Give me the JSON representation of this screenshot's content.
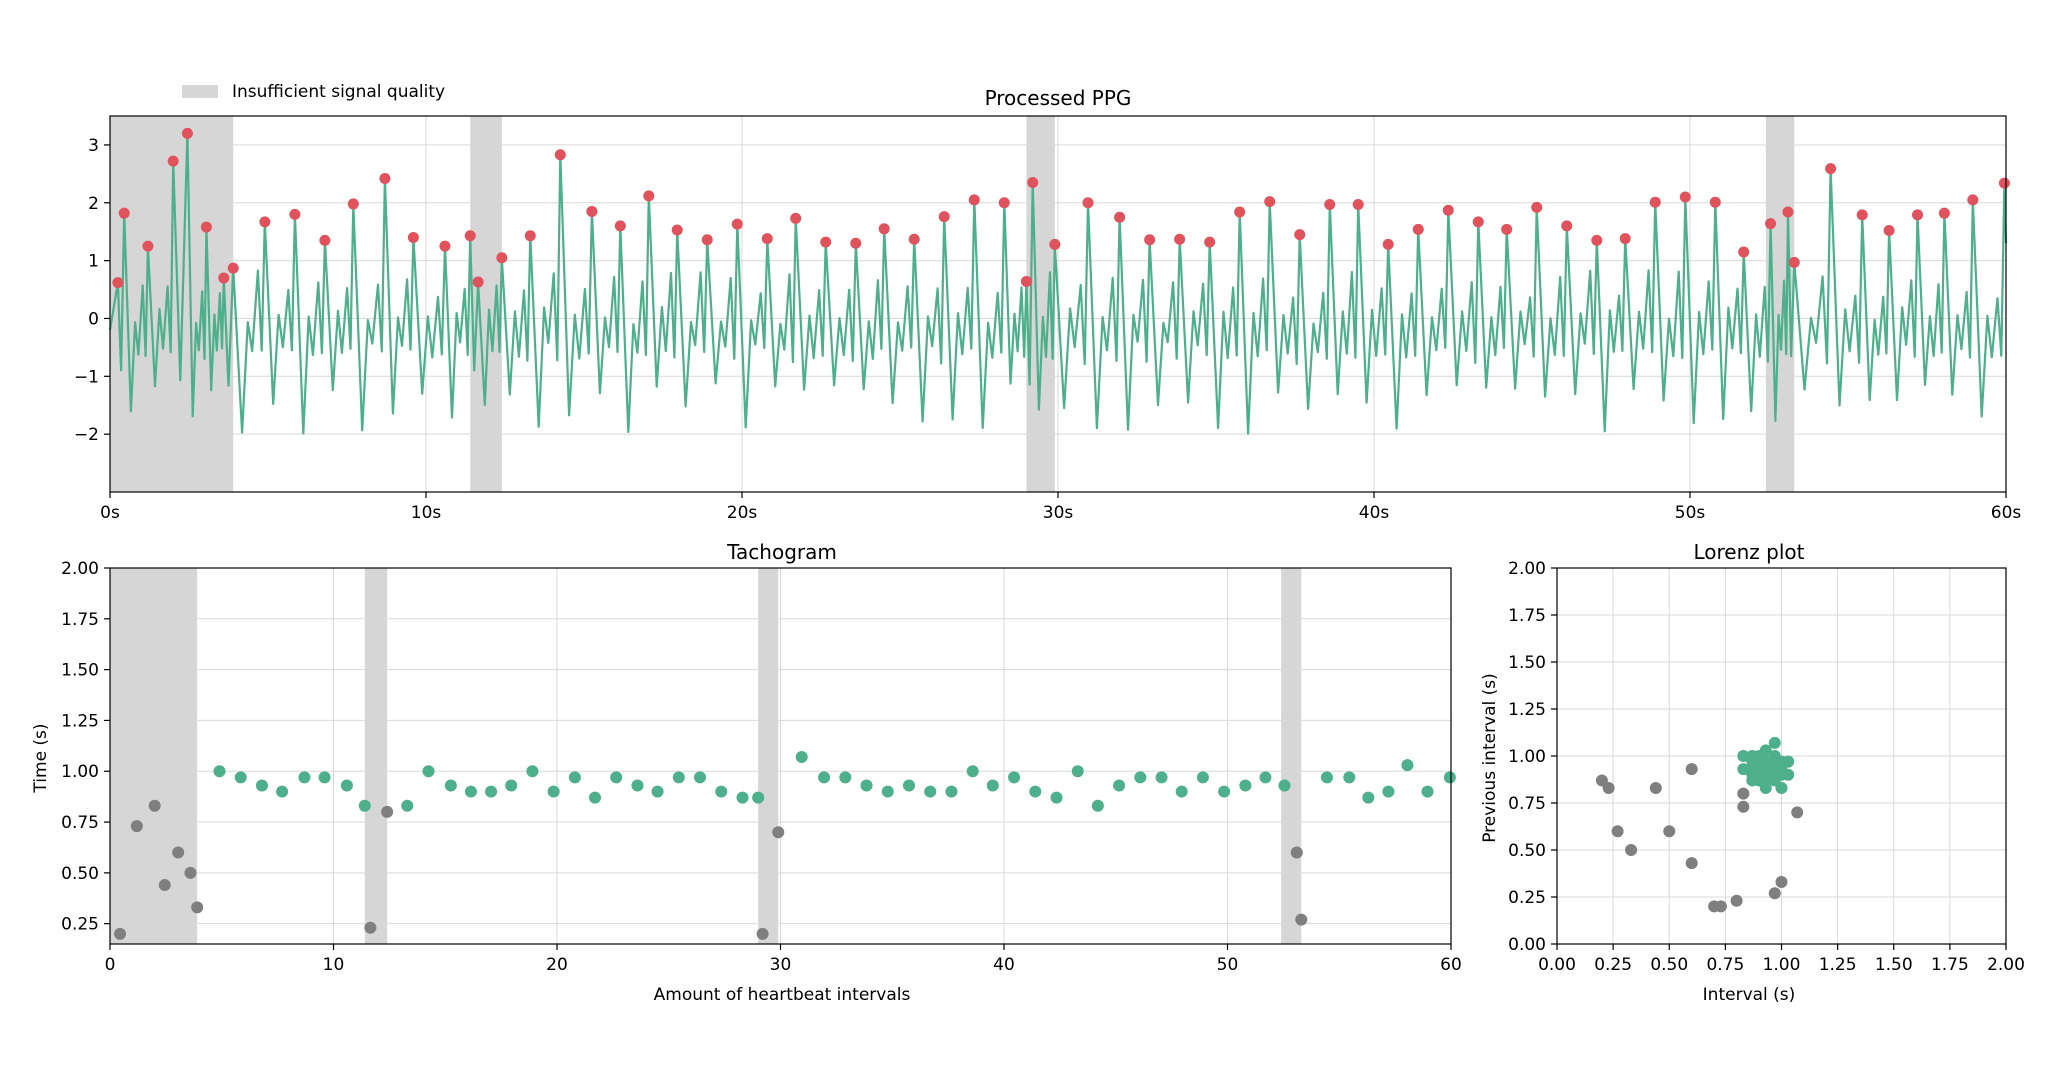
{
  "colors": {
    "signal": "#4daf8c",
    "peak": "#e0525c",
    "valid": "#4daf8c",
    "invalid": "#7f7f7f",
    "band": "#d6d6d6",
    "grid": "#d9d9d9"
  },
  "legend": {
    "label": "Insufficient signal quality"
  },
  "chart_data": [
    {
      "id": "ppg",
      "type": "line",
      "title": "Processed PPG",
      "xlabel": "",
      "ylabel": "",
      "xlim": [
        0,
        60
      ],
      "ylim": [
        -3.0,
        3.5
      ],
      "xticks": [
        0,
        10,
        20,
        30,
        40,
        50,
        60
      ],
      "xtick_labels": [
        "0s",
        "10s",
        "20s",
        "30s",
        "40s",
        "50s",
        "60s"
      ],
      "yticks": [
        -2,
        -1,
        0,
        1,
        2,
        3
      ],
      "ytick_labels": [
        "−2",
        "−1",
        "0",
        "1",
        "2",
        "3"
      ],
      "bands": [
        [
          0,
          3.9
        ],
        [
          11.4,
          12.4
        ],
        [
          29.0,
          29.9
        ],
        [
          52.4,
          53.3
        ]
      ],
      "peaks": [
        [
          0.25,
          0.62
        ],
        [
          0.45,
          1.82
        ],
        [
          1.2,
          1.25
        ],
        [
          2.0,
          2.72
        ],
        [
          2.45,
          3.2
        ],
        [
          3.05,
          1.58
        ],
        [
          3.6,
          0.7
        ],
        [
          3.9,
          0.87
        ],
        [
          4.9,
          1.67
        ],
        [
          5.85,
          1.8
        ],
        [
          6.8,
          1.35
        ],
        [
          7.7,
          1.98
        ],
        [
          8.7,
          2.42
        ],
        [
          9.6,
          1.4
        ],
        [
          10.6,
          1.25
        ],
        [
          11.4,
          1.43
        ],
        [
          11.65,
          0.63
        ],
        [
          12.4,
          1.05
        ],
        [
          13.3,
          1.43
        ],
        [
          14.25,
          2.83
        ],
        [
          15.25,
          1.85
        ],
        [
          16.15,
          1.6
        ],
        [
          17.05,
          2.12
        ],
        [
          17.95,
          1.53
        ],
        [
          18.9,
          1.36
        ],
        [
          19.85,
          1.63
        ],
        [
          20.8,
          1.38
        ],
        [
          21.7,
          1.73
        ],
        [
          22.65,
          1.32
        ],
        [
          23.6,
          1.3
        ],
        [
          24.5,
          1.55
        ],
        [
          25.45,
          1.37
        ],
        [
          26.4,
          1.76
        ],
        [
          27.35,
          2.05
        ],
        [
          28.3,
          2.0
        ],
        [
          29.0,
          0.64
        ],
        [
          29.2,
          2.35
        ],
        [
          29.9,
          1.28
        ],
        [
          30.95,
          2.0
        ],
        [
          31.95,
          1.75
        ],
        [
          32.9,
          1.36
        ],
        [
          33.85,
          1.37
        ],
        [
          34.8,
          1.32
        ],
        [
          35.75,
          1.84
        ],
        [
          36.7,
          2.02
        ],
        [
          37.65,
          1.45
        ],
        [
          38.6,
          1.97
        ],
        [
          39.5,
          1.97
        ],
        [
          40.45,
          1.28
        ],
        [
          41.4,
          1.54
        ],
        [
          42.35,
          1.87
        ],
        [
          43.3,
          1.67
        ],
        [
          44.2,
          1.54
        ],
        [
          45.15,
          1.92
        ],
        [
          46.1,
          1.6
        ],
        [
          47.05,
          1.35
        ],
        [
          47.95,
          1.38
        ],
        [
          48.9,
          2.01
        ],
        [
          49.85,
          2.1
        ],
        [
          50.8,
          2.01
        ],
        [
          51.7,
          1.15
        ],
        [
          52.55,
          1.64
        ],
        [
          53.1,
          1.84
        ],
        [
          53.3,
          0.97
        ],
        [
          54.45,
          2.59
        ],
        [
          55.45,
          1.79
        ],
        [
          56.3,
          1.52
        ],
        [
          57.2,
          1.79
        ],
        [
          58.05,
          1.82
        ],
        [
          58.95,
          2.05
        ],
        [
          59.95,
          2.34
        ]
      ]
    },
    {
      "id": "tachogram",
      "type": "scatter",
      "title": "Tachogram",
      "xlabel": "Amount of heartbeat intervals",
      "ylabel": "Time (s)",
      "xlim": [
        0,
        60
      ],
      "ylim": [
        0.15,
        2.0
      ],
      "xticks": [
        0,
        10,
        20,
        30,
        40,
        50,
        60
      ],
      "xtick_labels": [
        "0",
        "10",
        "20",
        "30",
        "40",
        "50",
        "60"
      ],
      "yticks": [
        0.25,
        0.5,
        0.75,
        1.0,
        1.25,
        1.5,
        1.75,
        2.0
      ],
      "ytick_labels": [
        "0.25",
        "0.50",
        "0.75",
        "1.00",
        "1.25",
        "1.50",
        "1.75",
        "2.00"
      ],
      "bands": [
        [
          0,
          3.9
        ],
        [
          11.4,
          12.4
        ],
        [
          29.0,
          29.9
        ],
        [
          52.4,
          53.3
        ]
      ],
      "invalid": [
        [
          0.45,
          0.2
        ],
        [
          1.2,
          0.73
        ],
        [
          2.0,
          0.83
        ],
        [
          2.45,
          0.44
        ],
        [
          3.05,
          0.6
        ],
        [
          3.6,
          0.5
        ],
        [
          3.9,
          0.33
        ],
        [
          11.65,
          0.23
        ],
        [
          12.4,
          0.8
        ],
        [
          29.2,
          0.2
        ],
        [
          29.9,
          0.7
        ],
        [
          53.1,
          0.6
        ],
        [
          53.3,
          0.27
        ]
      ],
      "valid": [
        [
          4.9,
          1.0
        ],
        [
          5.85,
          0.97
        ],
        [
          6.8,
          0.93
        ],
        [
          7.7,
          0.9
        ],
        [
          8.7,
          0.97
        ],
        [
          9.6,
          0.97
        ],
        [
          10.6,
          0.93
        ],
        [
          11.4,
          0.83
        ],
        [
          13.3,
          0.83
        ],
        [
          14.25,
          1.0
        ],
        [
          15.25,
          0.93
        ],
        [
          16.15,
          0.9
        ],
        [
          17.05,
          0.9
        ],
        [
          17.95,
          0.93
        ],
        [
          18.9,
          1.0
        ],
        [
          19.85,
          0.9
        ],
        [
          20.8,
          0.97
        ],
        [
          21.7,
          0.87
        ],
        [
          22.65,
          0.97
        ],
        [
          23.6,
          0.93
        ],
        [
          24.5,
          0.9
        ],
        [
          25.45,
          0.97
        ],
        [
          26.4,
          0.97
        ],
        [
          27.35,
          0.9
        ],
        [
          28.3,
          0.87
        ],
        [
          29.0,
          0.87
        ],
        [
          30.95,
          1.07
        ],
        [
          31.95,
          0.97
        ],
        [
          32.9,
          0.97
        ],
        [
          33.85,
          0.93
        ],
        [
          34.8,
          0.9
        ],
        [
          35.75,
          0.93
        ],
        [
          36.7,
          0.9
        ],
        [
          37.65,
          0.9
        ],
        [
          38.6,
          1.0
        ],
        [
          39.5,
          0.93
        ],
        [
          40.45,
          0.97
        ],
        [
          41.4,
          0.9
        ],
        [
          42.35,
          0.87
        ],
        [
          43.3,
          1.0
        ],
        [
          44.2,
          0.83
        ],
        [
          45.15,
          0.93
        ],
        [
          46.1,
          0.97
        ],
        [
          47.05,
          0.97
        ],
        [
          47.95,
          0.9
        ],
        [
          48.9,
          0.97
        ],
        [
          49.85,
          0.9
        ],
        [
          50.8,
          0.93
        ],
        [
          51.7,
          0.97
        ],
        [
          52.55,
          0.93
        ],
        [
          54.45,
          0.97
        ],
        [
          55.45,
          0.97
        ],
        [
          56.3,
          0.87
        ],
        [
          57.2,
          0.9
        ],
        [
          58.05,
          1.03
        ],
        [
          58.95,
          0.9
        ],
        [
          59.95,
          0.97
        ]
      ]
    },
    {
      "id": "lorenz",
      "type": "scatter",
      "title": "Lorenz plot",
      "xlabel": "Interval (s)",
      "ylabel": "Previous interval (s)",
      "xlim": [
        0,
        2.0
      ],
      "ylim": [
        0,
        2.0
      ],
      "xticks": [
        0,
        0.25,
        0.5,
        0.75,
        1.0,
        1.25,
        1.5,
        1.75,
        2.0
      ],
      "xtick_labels": [
        "0.00",
        "0.25",
        "0.50",
        "0.75",
        "1.00",
        "1.25",
        "1.50",
        "1.75",
        "2.00"
      ],
      "yticks": [
        0,
        0.25,
        0.5,
        0.75,
        1.0,
        1.25,
        1.5,
        1.75,
        2.0
      ],
      "ytick_labels": [
        "0.00",
        "0.25",
        "0.50",
        "0.75",
        "1.00",
        "1.25",
        "1.50",
        "1.75",
        "2.00"
      ],
      "invalid": [
        [
          0.2,
          0.87
        ],
        [
          0.23,
          0.83
        ],
        [
          0.27,
          0.6
        ],
        [
          0.33,
          0.5
        ],
        [
          0.44,
          0.83
        ],
        [
          0.5,
          0.6
        ],
        [
          0.6,
          0.93
        ],
        [
          0.6,
          0.43
        ],
        [
          0.7,
          0.2
        ],
        [
          0.73,
          0.2
        ],
        [
          0.8,
          0.23
        ],
        [
          0.83,
          0.8
        ],
        [
          0.83,
          0.73
        ],
        [
          0.97,
          0.27
        ],
        [
          1.0,
          0.33
        ],
        [
          1.07,
          0.7
        ]
      ],
      "valid": [
        [
          0.83,
          1.0
        ],
        [
          0.87,
          0.97
        ],
        [
          0.9,
          0.93
        ],
        [
          0.93,
          0.9
        ],
        [
          0.97,
          0.97
        ],
        [
          1.0,
          0.93
        ],
        [
          0.9,
          1.0
        ],
        [
          0.87,
          0.9
        ],
        [
          0.93,
          0.97
        ],
        [
          0.97,
          1.07
        ],
        [
          1.03,
          0.9
        ],
        [
          0.93,
          1.03
        ],
        [
          0.97,
          0.87
        ],
        [
          0.9,
          0.87
        ],
        [
          0.87,
          0.93
        ],
        [
          0.9,
          0.9
        ],
        [
          1.0,
          0.97
        ],
        [
          0.93,
          0.87
        ],
        [
          0.97,
          0.93
        ],
        [
          0.83,
          0.93
        ],
        [
          0.87,
          0.87
        ],
        [
          1.0,
          0.83
        ],
        [
          0.97,
          0.9
        ],
        [
          0.9,
          0.97
        ],
        [
          0.93,
          0.93
        ],
        [
          1.0,
          0.9
        ],
        [
          0.93,
          0.83
        ],
        [
          0.87,
          1.0
        ],
        [
          0.97,
          1.0
        ],
        [
          1.03,
          0.97
        ]
      ]
    }
  ]
}
